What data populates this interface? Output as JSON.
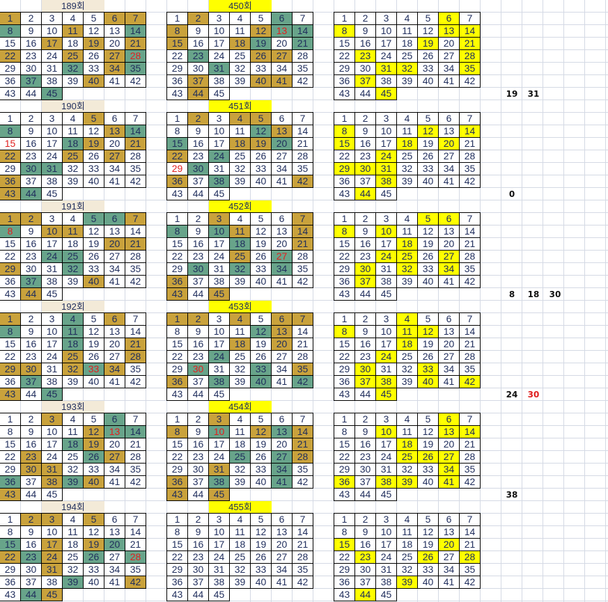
{
  "colors": {
    "gold": "#c9a23c",
    "teal": "#68a48a",
    "yellow": "#ffff00",
    "red_text": "#e02020",
    "header_left": "#f3ead8",
    "header_mid": "#ffff00"
  },
  "numbers": [
    1,
    2,
    3,
    4,
    5,
    6,
    7,
    8,
    9,
    10,
    11,
    12,
    13,
    14,
    15,
    16,
    17,
    18,
    19,
    20,
    21,
    22,
    23,
    24,
    25,
    26,
    27,
    28,
    29,
    30,
    31,
    32,
    33,
    34,
    35,
    36,
    37,
    38,
    39,
    40,
    41,
    42,
    43,
    44,
    45
  ],
  "blocks": [
    {
      "left": {
        "title": "189회",
        "gold": [
          1,
          6,
          7,
          11,
          17,
          19,
          21,
          22,
          25,
          27,
          34,
          40
        ],
        "teal": [
          8,
          14,
          28,
          32,
          35,
          37,
          45
        ],
        "red": [
          28
        ]
      },
      "mid": {
        "title": "450회",
        "gold": [
          2,
          8,
          12,
          15,
          18,
          26,
          27,
          37,
          40,
          41,
          44
        ],
        "teal": [
          6,
          13,
          14,
          19,
          21,
          23,
          31
        ],
        "red": [
          13
        ]
      },
      "right": {
        "yellow": [
          6,
          8,
          13,
          14,
          19,
          21,
          23,
          28,
          31,
          32,
          35,
          37,
          45
        ]
      },
      "side": [
        {
          "text": "19",
          "red": false
        },
        {
          "text": "31",
          "red": false
        }
      ]
    },
    {
      "left": {
        "title": "190회",
        "gold": [
          5,
          13,
          19,
          21,
          22,
          25,
          27,
          36,
          43
        ],
        "teal": [
          8,
          14,
          18,
          30,
          31,
          44
        ],
        "red": [
          15
        ]
      },
      "mid": {
        "title": "451회",
        "gold": [
          2,
          4,
          5,
          13,
          18,
          19,
          22,
          36,
          42
        ],
        "teal": [
          12,
          15,
          20,
          24,
          30,
          38
        ],
        "red": [
          29
        ]
      },
      "right": {
        "yellow": [
          8,
          12,
          14,
          15,
          18,
          20,
          24,
          29,
          30,
          31,
          38,
          44
        ]
      },
      "side": [
        {
          "text": "0",
          "red": false
        }
      ]
    },
    {
      "left": {
        "title": "191회",
        "gold": [
          1,
          2,
          7,
          10,
          11,
          20,
          21,
          29,
          40,
          44
        ],
        "teal": [
          5,
          6,
          8,
          24,
          25,
          32,
          37
        ],
        "red": [
          8
        ]
      },
      "mid": {
        "title": "452회",
        "gold": [
          3,
          7,
          11,
          14,
          21,
          25,
          36,
          43,
          45
        ],
        "teal": [
          8,
          10,
          18,
          27,
          30,
          32,
          34
        ],
        "red": [
          27
        ]
      },
      "right": {
        "yellow": [
          5,
          6,
          8,
          10,
          18,
          24,
          25,
          27,
          30,
          32,
          34,
          37
        ]
      },
      "side": [
        {
          "text": "8",
          "red": false
        },
        {
          "text": "18",
          "red": false
        },
        {
          "text": "30",
          "red": false
        }
      ]
    },
    {
      "left": {
        "title": "192회",
        "gold": [
          1,
          6,
          21,
          25,
          28,
          29,
          30,
          32,
          34,
          43
        ],
        "teal": [
          4,
          8,
          11,
          18,
          33,
          37,
          45
        ],
        "red": [
          33
        ]
      },
      "mid": {
        "title": "453회",
        "gold": [
          1,
          2,
          4,
          6,
          7,
          13,
          18,
          20,
          35,
          36
        ],
        "teal": [
          12,
          24,
          30,
          33,
          38,
          40,
          42
        ],
        "red": [
          30
        ]
      },
      "right": {
        "yellow": [
          4,
          8,
          11,
          12,
          18,
          24,
          30,
          33,
          37,
          38,
          40,
          42,
          45
        ]
      },
      "side": [
        {
          "text": "24",
          "red": false
        },
        {
          "text": "30",
          "red": true
        }
      ]
    },
    {
      "left": {
        "title": "193회",
        "gold": [
          3,
          12,
          19,
          23,
          27,
          30,
          31,
          38,
          40,
          43
        ],
        "teal": [
          6,
          13,
          14,
          18,
          26,
          36,
          39
        ],
        "red": [
          13
        ]
      },
      "mid": {
        "title": "454회",
        "gold": [
          3,
          8,
          12,
          14,
          21,
          28,
          31,
          36,
          43,
          45
        ],
        "teal": [
          10,
          13,
          25,
          27,
          34,
          38,
          41
        ],
        "red": [
          10
        ]
      },
      "right": {
        "yellow": [
          6,
          10,
          13,
          14,
          18,
          25,
          26,
          27,
          34,
          36,
          38,
          39,
          41
        ]
      },
      "side": [
        {
          "text": "38",
          "red": false
        }
      ]
    },
    {
      "left": {
        "title": "194회",
        "gold": [
          2,
          3,
          5,
          17,
          19,
          22,
          24,
          31,
          42,
          45
        ],
        "teal": [
          15,
          20,
          23,
          26,
          28,
          39,
          44
        ],
        "red": [
          28
        ]
      },
      "mid": {
        "title": "455회",
        "gold": [],
        "teal": [],
        "red": []
      },
      "right": {
        "yellow": [
          15,
          20,
          23,
          26,
          28,
          39,
          44
        ]
      },
      "side": []
    }
  ]
}
